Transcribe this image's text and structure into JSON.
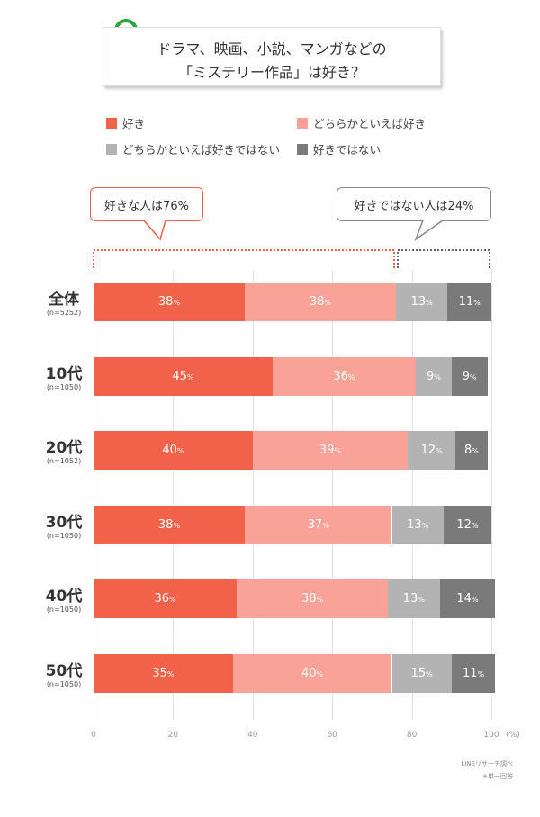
{
  "chart_data": {
    "type": "bar",
    "orientation": "horizontal-stacked",
    "title": [
      "ドラマ、映画、小説、マンガなどの",
      "「ミステリー作品」は好き？"
    ],
    "categories": [
      {
        "label": "全体",
        "n": "(n=5252)"
      },
      {
        "label": "10代",
        "n": "(n=1050)"
      },
      {
        "label": "20代",
        "n": "(n=1052)"
      },
      {
        "label": "30代",
        "n": "(n=1050)"
      },
      {
        "label": "40代",
        "n": "(n=1050)"
      },
      {
        "label": "50代",
        "n": "(n=1050)"
      }
    ],
    "series": [
      {
        "name": "好き",
        "color": "#f2614a",
        "values": [
          38,
          45,
          40,
          38,
          36,
          35
        ]
      },
      {
        "name": "どちらかといえば好き",
        "color": "#f9a298",
        "values": [
          38,
          36,
          39,
          37,
          38,
          40
        ]
      },
      {
        "name": "どちらかといえば好きではない",
        "color": "#b3b3b3",
        "values": [
          13,
          9,
          12,
          13,
          13,
          15
        ]
      },
      {
        "name": "好きではない",
        "color": "#7a7a7a",
        "values": [
          11,
          9,
          8,
          12,
          14,
          11
        ]
      }
    ],
    "xlim": [
      0,
      100
    ],
    "xticks": [
      "0",
      "20",
      "40",
      "60",
      "80",
      "100"
    ],
    "xunit": "(%)",
    "value_suffix": "%",
    "legend_position": "top",
    "grid": true,
    "callouts": {
      "like": "好きな人は76%",
      "dislike": "好きではない人は24%"
    },
    "footer": [
      "LINEリサーチ調べ",
      "※単一回答"
    ]
  },
  "icons": {
    "title": "magnifier-icon"
  }
}
